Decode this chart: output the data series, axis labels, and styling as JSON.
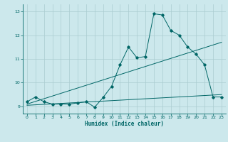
{
  "xlabel": "Humidex (Indice chaleur)",
  "xlim": [
    -0.5,
    23.5
  ],
  "ylim": [
    8.7,
    13.3
  ],
  "xticks": [
    0,
    1,
    2,
    3,
    4,
    5,
    6,
    7,
    8,
    9,
    10,
    11,
    12,
    13,
    14,
    15,
    16,
    17,
    18,
    19,
    20,
    21,
    22,
    23
  ],
  "yticks": [
    9,
    10,
    11,
    12,
    13
  ],
  "bg_color": "#cce8ec",
  "line_color": "#006666",
  "grid_color": "#aaccd0",
  "line1_x": [
    0,
    1,
    2,
    3,
    4,
    5,
    6,
    7,
    8,
    9,
    10,
    11,
    12,
    13,
    14,
    15,
    16,
    17,
    18,
    19,
    20,
    21,
    22,
    23
  ],
  "line1_y": [
    9.2,
    9.4,
    9.2,
    9.1,
    9.1,
    9.1,
    9.15,
    9.2,
    8.97,
    9.38,
    9.85,
    10.75,
    11.5,
    11.05,
    11.1,
    12.9,
    12.85,
    12.2,
    12.0,
    11.5,
    11.2,
    10.75,
    9.4,
    9.4
  ],
  "line2_x": [
    0,
    23
  ],
  "line2_y": [
    9.05,
    9.5
  ],
  "line3_x": [
    0,
    23
  ],
  "line3_y": [
    9.1,
    11.7
  ]
}
